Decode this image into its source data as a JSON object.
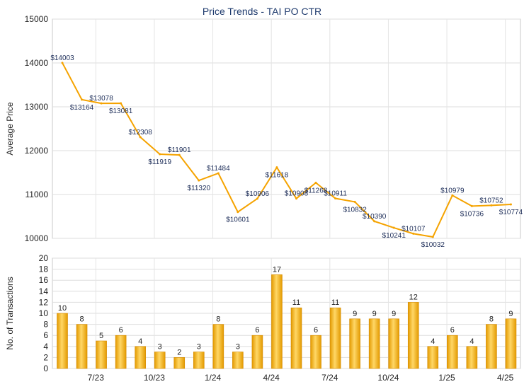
{
  "chart_data": [
    {
      "type": "line",
      "title": "Price Trends - TAI PO CTR",
      "ylabel": "Average Price",
      "ylim": [
        10000,
        15000
      ],
      "yticks": [
        10000,
        11000,
        12000,
        13000,
        14000,
        15000
      ],
      "grid": true,
      "labels": [
        "$14003",
        "$13164",
        "$13078",
        "$13081",
        "$12308",
        "$11919",
        "$11901",
        "$11320",
        "$11484",
        "$10601",
        "$10906",
        "$11618",
        "$10908",
        "$11268",
        "$10911",
        "$10832",
        "$10390",
        "$10241",
        "$10107",
        "$10032",
        "$10979",
        "$10736",
        "$10752",
        "$10774"
      ],
      "values": [
        14003,
        13164,
        13078,
        13081,
        12308,
        11919,
        11901,
        11320,
        11484,
        10601,
        10906,
        11618,
        10908,
        11268,
        10911,
        10832,
        10390,
        10241,
        10107,
        10032,
        10979,
        10736,
        10752,
        10774
      ],
      "line_color": "#f5a300"
    },
    {
      "type": "bar",
      "ylabel": "No. of Transactions",
      "ylim": [
        0,
        20
      ],
      "yticks": [
        0,
        2,
        4,
        6,
        8,
        10,
        12,
        14,
        16,
        18,
        20
      ],
      "grid": true,
      "categories_ticks": [
        "7/23",
        "10/23",
        "1/24",
        "4/24",
        "7/24",
        "10/24",
        "1/25",
        "4/25"
      ],
      "values": [
        10,
        8,
        5,
        6,
        4,
        3,
        2,
        3,
        8,
        3,
        6,
        17,
        11,
        6,
        11,
        9,
        9,
        9,
        12,
        4,
        6,
        4,
        8,
        9
      ],
      "bar_color": "#f5b324"
    }
  ]
}
